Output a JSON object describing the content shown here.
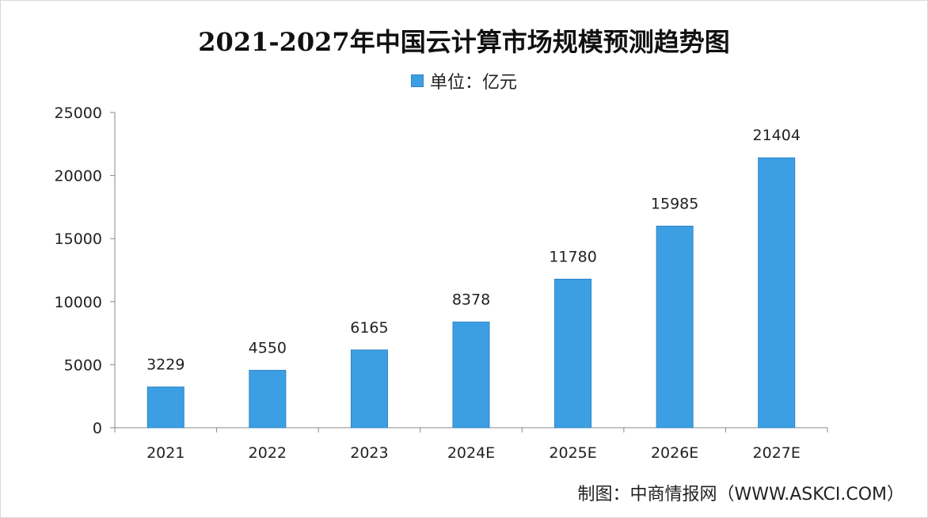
{
  "title": "2021-2027年中国云计算市场规模预测趋势图",
  "legend_label": "单位：亿元",
  "source_text": "制图：中商情报网（WWW.ASKCI.COM）",
  "colors": {
    "bar": "#3d9fe3",
    "bar_edge": "#2c84c4",
    "axis": "#888888"
  },
  "chart_data": {
    "type": "bar",
    "title": "2021-2027年中国云计算市场规模预测趋势图",
    "unit": "单位：亿元",
    "categories": [
      "2021",
      "2022",
      "2023",
      "2024E",
      "2025E",
      "2026E",
      "2027E"
    ],
    "values": [
      3229,
      4550,
      6165,
      8378,
      11780,
      15985,
      21404
    ],
    "ylim": [
      0,
      25000
    ],
    "yticks": [
      0,
      5000,
      10000,
      15000,
      20000,
      25000
    ],
    "xlabel": "",
    "ylabel": "",
    "grid": false,
    "legend_position": "top-center"
  }
}
